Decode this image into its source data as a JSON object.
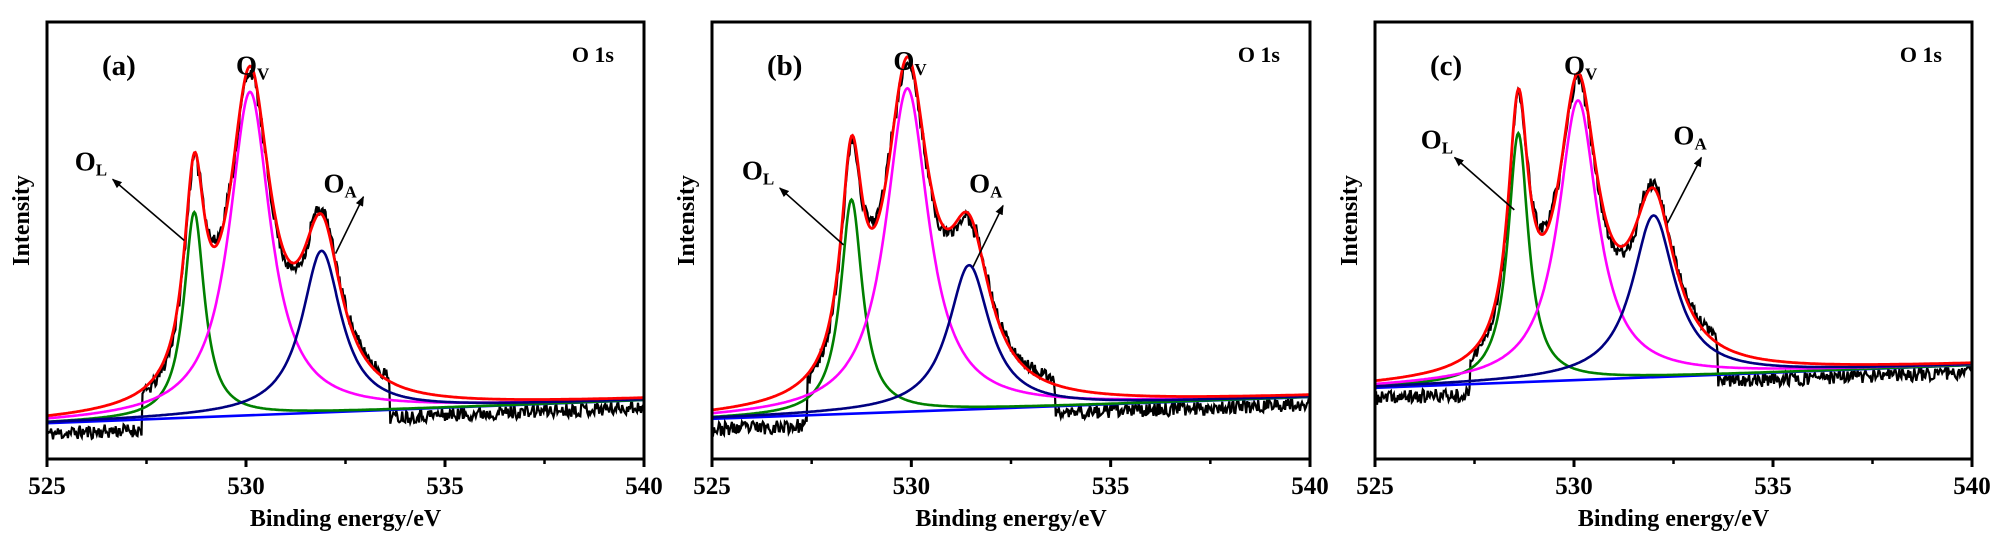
{
  "chart_data": [
    {
      "type": "line",
      "panel_label": "(a)",
      "corner_label": "O 1s",
      "xlabel": "Binding energy/eV",
      "ylabel": "Intensity",
      "xlim": [
        525,
        540
      ],
      "ylim": [
        0,
        100
      ],
      "xticks": [
        "525",
        "530",
        "535",
        "540"
      ],
      "minor_xticks": [
        527.5,
        532.5,
        537.5
      ],
      "grid": false,
      "baseline": {
        "at_525": 8.2,
        "at_540": 13.5
      },
      "components": [
        {
          "name": "O_L",
          "label": "O",
          "sub": "L",
          "color": "#008000",
          "center": 528.7,
          "height": 47,
          "fwhm": 0.62
        },
        {
          "name": "O_V",
          "label": "O",
          "sub": "V",
          "color": "#ff00ff",
          "center": 530.1,
          "height": 74,
          "fwhm": 1.25
        },
        {
          "name": "O_A",
          "label": "O",
          "sub": "A",
          "color": "#000080",
          "center": 531.9,
          "height": 37,
          "fwhm": 1.2
        }
      ],
      "envelope_color": "#ff0000",
      "baseline_color": "#0000ff",
      "raw_color": "#000000",
      "annotations": [
        {
          "text": "O",
          "sub": "V",
          "x": 530.1,
          "y": 88
        },
        {
          "text": "O",
          "sub": "L",
          "x": 526.05,
          "y": 66,
          "arrow_from": [
            528.45,
            50
          ],
          "arrow_to": [
            526.65,
            64
          ]
        },
        {
          "text": "O",
          "sub": "A",
          "x": 532.3,
          "y": 61,
          "arrow_from": [
            532.25,
            47
          ],
          "arrow_to": [
            532.95,
            60
          ]
        }
      ],
      "noise_seed": 11
    },
    {
      "type": "line",
      "panel_label": "(b)",
      "corner_label": "O 1s",
      "xlabel": "Binding energy/eV",
      "ylabel": "Intensity",
      "xlim": [
        525,
        540
      ],
      "ylim": [
        0,
        100
      ],
      "xticks": [
        "525",
        "530",
        "535",
        "540"
      ],
      "minor_xticks": [
        527.5,
        532.5,
        537.5
      ],
      "grid": false,
      "baseline": {
        "at_525": 9.2,
        "at_540": 14.2
      },
      "components": [
        {
          "name": "O_L",
          "label": "O",
          "sub": "L",
          "color": "#008000",
          "center": 528.5,
          "height": 49,
          "fwhm": 0.66
        },
        {
          "name": "O_V",
          "label": "O",
          "sub": "V",
          "color": "#ff00ff",
          "center": 529.9,
          "height": 74,
          "fwhm": 1.3
        },
        {
          "name": "O_A",
          "label": "O",
          "sub": "A",
          "color": "#000080",
          "center": 531.45,
          "height": 33,
          "fwhm": 1.25
        }
      ],
      "envelope_color": "#ff0000",
      "baseline_color": "#0000ff",
      "raw_color": "#000000",
      "annotations": [
        {
          "text": "O",
          "sub": "V",
          "x": 529.9,
          "y": 89
        },
        {
          "text": "O",
          "sub": "L",
          "x": 526.1,
          "y": 64,
          "arrow_from": [
            528.3,
            49
          ],
          "arrow_to": [
            526.7,
            62
          ]
        },
        {
          "text": "O",
          "sub": "A",
          "x": 531.8,
          "y": 61,
          "arrow_from": [
            531.55,
            44
          ],
          "arrow_to": [
            532.3,
            58
          ]
        }
      ],
      "noise_seed": 23
    },
    {
      "type": "line",
      "panel_label": "(c)",
      "corner_label": "O 1s",
      "xlabel": "Binding energy/eV",
      "ylabel": "Intensity",
      "xlim": [
        525,
        540
      ],
      "ylim": [
        0,
        100
      ],
      "xticks": [
        "525",
        "530",
        "535",
        "540"
      ],
      "minor_xticks": [
        527.5,
        532.5,
        537.5
      ],
      "grid": false,
      "baseline": {
        "at_525": 16.3,
        "at_540": 21.5
      },
      "components": [
        {
          "name": "O_L",
          "label": "O",
          "sub": "L",
          "color": "#008000",
          "center": 528.6,
          "height": 57,
          "fwhm": 0.62
        },
        {
          "name": "O_V",
          "label": "O",
          "sub": "V",
          "color": "#ff00ff",
          "center": 530.1,
          "height": 64,
          "fwhm": 1.2
        },
        {
          "name": "O_A",
          "label": "O",
          "sub": "A",
          "color": "#000080",
          "center": 532.0,
          "height": 37,
          "fwhm": 1.3
        }
      ],
      "envelope_color": "#ff0000",
      "baseline_color": "#0000ff",
      "raw_color": "#000000",
      "annotations": [
        {
          "text": "O",
          "sub": "V",
          "x": 530.1,
          "y": 88
        },
        {
          "text": "O",
          "sub": "L",
          "x": 526.5,
          "y": 71,
          "arrow_from": [
            528.5,
            57
          ],
          "arrow_to": [
            527.0,
            69
          ]
        },
        {
          "text": "O",
          "sub": "A",
          "x": 532.85,
          "y": 72,
          "arrow_from": [
            532.35,
            54
          ],
          "arrow_to": [
            533.2,
            69
          ]
        }
      ],
      "noise_seed": 37
    }
  ]
}
